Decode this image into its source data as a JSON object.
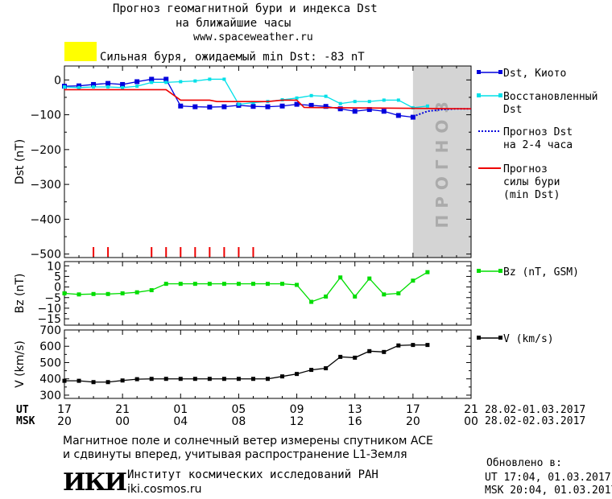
{
  "header": {
    "title_line1": "Прогноз геомагнитной бури и индекса Dst",
    "title_line2": "на ближайшие часы",
    "url": "www.spaceweather.ru",
    "alert_text": "Сильная буря, ожидаемый min Dst: -83 nT",
    "alert_color": "#ffff00"
  },
  "colors": {
    "dst": "#0000dd",
    "restored": "#00e0e8",
    "forecast_storm": "#ee0000",
    "bz": "#00dd00",
    "v": "#000000",
    "forecast_shade": "#d4d4d4",
    "storm_ticks": "#ee0000"
  },
  "chart_data": [
    {
      "type": "line",
      "panel": "dst",
      "ylabel": "Dst (nT)",
      "ylim": [
        -510,
        40
      ],
      "yticks": [
        0,
        -100,
        -200,
        -300,
        -400,
        -500
      ],
      "xlim": [
        17,
        45
      ],
      "forecast_region": [
        41,
        45
      ],
      "forecast_label": "ПРОГНОЗ",
      "storm_tick_hours": [
        19,
        20,
        23,
        24,
        25,
        26,
        27,
        28,
        29,
        30
      ],
      "series": [
        {
          "name": "Dst, Киото",
          "x": [
            17,
            18,
            19,
            20,
            21,
            22,
            23,
            24,
            25,
            26,
            27,
            28,
            29,
            30,
            31,
            32,
            33,
            34,
            35,
            36,
            37,
            38,
            39,
            40,
            41
          ],
          "y": [
            -18,
            -17,
            -13,
            -10,
            -13,
            -5,
            2,
            2,
            -75,
            -77,
            -78,
            -77,
            -73,
            -76,
            -77,
            -75,
            -70,
            -73,
            -76,
            -83,
            -90,
            -85,
            -90,
            -102,
            -107
          ]
        },
        {
          "name": "Восстановленный Dst",
          "x": [
            17,
            18,
            19,
            20,
            21,
            22,
            23,
            24,
            25,
            26,
            27,
            28,
            29,
            30,
            31,
            32,
            33,
            34,
            35,
            36,
            37,
            38,
            39,
            40,
            41,
            42
          ],
          "y": [
            -20,
            -22,
            -20,
            -20,
            -22,
            -18,
            -7,
            -7,
            -5,
            -3,
            2,
            2,
            -70,
            -65,
            -62,
            -57,
            -52,
            -45,
            -47,
            -68,
            -62,
            -62,
            -58,
            -58,
            -80,
            -75
          ]
        },
        {
          "name": "Прогноз Dst на 2-4 часа",
          "x": [
            41,
            42,
            43,
            44,
            45
          ],
          "y": [
            -105,
            -90,
            -85,
            -83,
            -83
          ]
        },
        {
          "name": "Прогноз силы бури (min Dst)",
          "x": [
            17,
            24,
            25,
            27,
            27.5,
            31,
            32,
            33,
            33.5,
            45
          ],
          "y": [
            -28,
            -28,
            -58,
            -58,
            -62,
            -62,
            -58,
            -58,
            -79,
            -83
          ]
        }
      ]
    },
    {
      "type": "line",
      "panel": "bz",
      "ylabel": "Bz (nT)",
      "ylim": [
        -18,
        12
      ],
      "yticks": [
        10,
        5,
        0,
        -5,
        -10,
        -15
      ],
      "xlim": [
        17,
        45
      ],
      "series": [
        {
          "name": "Bz (nT, GSM)",
          "x": [
            17,
            18,
            19,
            20,
            21,
            22,
            23,
            24,
            25,
            26,
            27,
            28,
            29,
            30,
            31,
            32,
            33,
            34,
            35,
            36,
            37,
            38,
            39,
            40,
            41,
            42
          ],
          "y": [
            -3,
            -3.5,
            -3.3,
            -3.3,
            -3,
            -2.5,
            -1.5,
            1.5,
            1.5,
            1.5,
            1.5,
            1.5,
            1.5,
            1.5,
            1.5,
            1.5,
            1,
            -7,
            -4.5,
            4.5,
            -4.5,
            4,
            -3.5,
            -3,
            3,
            7
          ]
        }
      ]
    },
    {
      "type": "line",
      "panel": "v",
      "ylabel": "V (km/s)",
      "ylim": [
        280,
        700
      ],
      "yticks": [
        700,
        600,
        500,
        400,
        300
      ],
      "xlim": [
        17,
        45
      ],
      "series": [
        {
          "name": "V (km/s)",
          "x": [
            17,
            18,
            19,
            20,
            21,
            22,
            23,
            24,
            25,
            26,
            27,
            28,
            29,
            30,
            31,
            32,
            33,
            34,
            35,
            36,
            37,
            38,
            39,
            40,
            41,
            42
          ],
          "y": [
            388,
            388,
            380,
            380,
            390,
            398,
            400,
            400,
            400,
            400,
            400,
            400,
            400,
            400,
            400,
            415,
            430,
            455,
            465,
            535,
            530,
            570,
            565,
            605,
            608,
            608
          ]
        }
      ]
    }
  ],
  "time_axis": {
    "ut_label": "UT",
    "msk_label": "MSK",
    "ut_ticks": [
      [
        "17",
        17
      ],
      [
        "21",
        21
      ],
      [
        "01",
        25
      ],
      [
        "05",
        29
      ],
      [
        "09",
        33
      ],
      [
        "13",
        37
      ],
      [
        "17",
        41
      ],
      [
        "21",
        45
      ]
    ],
    "msk_ticks": [
      [
        "20",
        17
      ],
      [
        "00",
        21
      ],
      [
        "04",
        25
      ],
      [
        "08",
        29
      ],
      [
        "12",
        33
      ],
      [
        "16",
        37
      ],
      [
        "20",
        41
      ],
      [
        "00",
        45
      ]
    ],
    "ut_range": "28.02-01.03.2017",
    "msk_range": "28.02-02.03.2017"
  },
  "footer": {
    "note_line1": "Магнитное поле и солнечный ветер измерены спутником ACE",
    "note_line2": "и сдвинуты вперед, учитывая распространение L1-Земля",
    "updated_label": "Обновлено в:",
    "updated_ut": "UT  17:04, 01.03.2017",
    "updated_msk": "MSK 20:04, 01.03.2017",
    "institute": "Институт космических исследований РАН",
    "institute_url": "iki.cosmos.ru",
    "logo_text": "ИКИ"
  }
}
